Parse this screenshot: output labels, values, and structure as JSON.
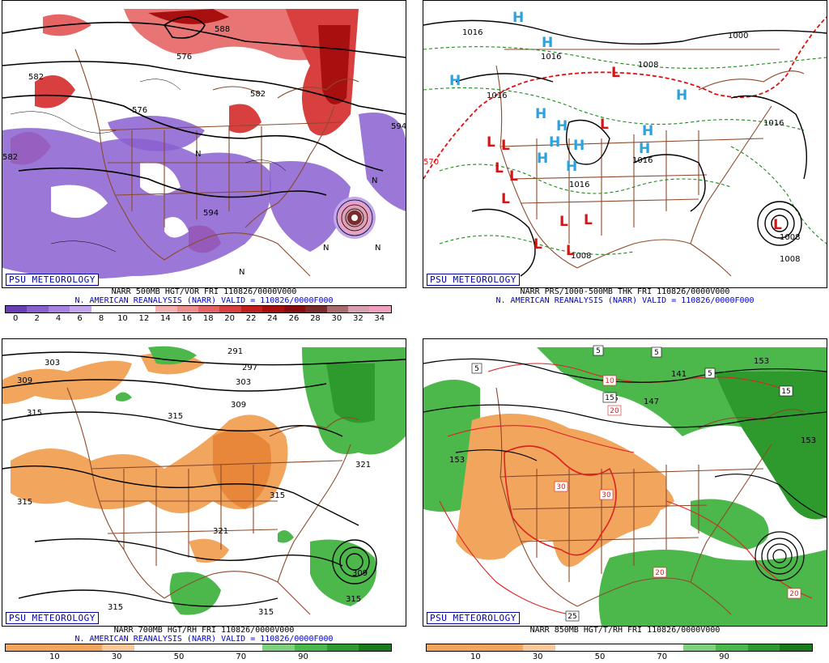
{
  "logo_text": "PSU METEOROLOGY",
  "panels": [
    {
      "id": "500mb",
      "line1": "NARR 500MB HGT/VOR FRI 110826/0000V000",
      "line2": "N. AMERICAN REANALYSIS (NARR) VALID = 110826/0000F000",
      "colorbar": {
        "colors": [
          "#6a3fb5",
          "#8a5fd0",
          "#a882e0",
          "#c4a6ec",
          "#ffffff",
          "#ffffff",
          "#ffffff",
          "#f3b3b3",
          "#ee8f8f",
          "#e56565",
          "#d84040",
          "#c21f1f",
          "#a81010",
          "#8a0d0d",
          "#7a2b2b",
          "#a86c6c",
          "#d6a0b0",
          "#ef9fbf"
        ],
        "ticks": [
          "0",
          "2",
          "4",
          "6",
          "8",
          "10",
          "12",
          "14",
          "16",
          "18",
          "20",
          "22",
          "24",
          "26",
          "28",
          "30",
          "32",
          "34"
        ]
      },
      "contour_labels": [
        "576",
        "582",
        "588",
        "594",
        "582",
        "594",
        "582",
        "576"
      ],
      "hl_labels": [
        "N",
        "N",
        "N",
        "N",
        "N"
      ]
    },
    {
      "id": "sfc",
      "line1": "NARR PRS/1000-500MB THK FRI 110826/0000V000",
      "line2": "N. AMERICAN REANALYSIS (NARR) VALID = 110826/0000F000",
      "contour_labels": [
        "1016",
        "1016",
        "1016",
        "1000",
        "1008",
        "1016",
        "1016",
        "1008",
        "1008",
        "1008",
        "570",
        "1016"
      ],
      "highs": [
        "H",
        "H",
        "H",
        "H",
        "H",
        "H",
        "H",
        "H",
        "H",
        "H",
        "H",
        "H"
      ],
      "lows": [
        "L",
        "L",
        "L",
        "L",
        "L",
        "L",
        "L",
        "L",
        "L",
        "L",
        "L",
        "L"
      ]
    },
    {
      "id": "700mb",
      "line1": "NARR 700MB HGT/RH FRI 110826/0000V000",
      "line2": "N. AMERICAN REANALYSIS (NARR) VALID = 110826/0000F000",
      "colorbar": {
        "colors": [
          "#f2a55d",
          "#f2a55d",
          "#f2a55d",
          "#f7c99a",
          "#ffffff",
          "#ffffff",
          "#ffffff",
          "#ffffff",
          "#7fd07f",
          "#4cb84c",
          "#2e9a2e",
          "#1a7a1a"
        ],
        "ticks": [
          "10",
          "30",
          "50",
          "70",
          "90"
        ]
      },
      "contour_labels": [
        "303",
        "309",
        "315",
        "291",
        "297",
        "303",
        "309",
        "315",
        "315",
        "321",
        "321",
        "315",
        "309",
        "315",
        "315",
        "315"
      ]
    },
    {
      "id": "850mb",
      "line1": "NARR 850MB HGT/T/RH FRI 110826/0000V000",
      "colorbar": {
        "colors": [
          "#f2a55d",
          "#f2a55d",
          "#f2a55d",
          "#f7c99a",
          "#ffffff",
          "#ffffff",
          "#ffffff",
          "#ffffff",
          "#7fd07f",
          "#4cb84c",
          "#2e9a2e",
          "#1a7a1a"
        ],
        "ticks": [
          "10",
          "30",
          "50",
          "70",
          "90"
        ]
      },
      "contour_labels": [
        "153",
        "147",
        "141",
        "153",
        "15",
        "153"
      ],
      "boxed_labels": [
        "5",
        "5",
        "5",
        "5",
        "10",
        "15",
        "20",
        "15",
        "30",
        "30",
        "20",
        "20",
        "25"
      ]
    }
  ]
}
